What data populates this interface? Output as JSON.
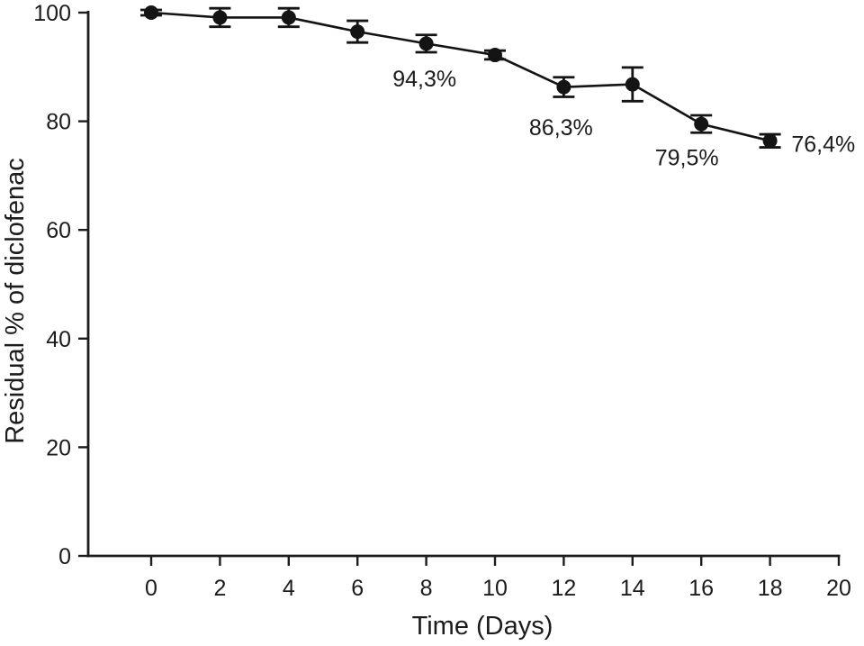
{
  "figure": {
    "background": "#ffffff"
  },
  "chart_data": {
    "type": "line",
    "title": "",
    "xlabel": "Time (Days)",
    "ylabel": "Residual % of diclofenac",
    "x": [
      0,
      2,
      4,
      6,
      8,
      10,
      12,
      14,
      16,
      18
    ],
    "series": [
      {
        "name": "residual-diclofenac",
        "values": [
          100,
          99.1,
          99.1,
          96.5,
          94.3,
          92.2,
          86.3,
          86.8,
          79.5,
          76.4
        ],
        "yerr": [
          0.5,
          1.7,
          1.7,
          2.0,
          1.6,
          0.8,
          1.8,
          3.1,
          1.6,
          1.2
        ]
      }
    ],
    "xticks": [
      0,
      2,
      4,
      6,
      8,
      10,
      12,
      14,
      16,
      18,
      20
    ],
    "yticks": [
      0,
      20,
      40,
      60,
      80,
      100
    ],
    "xlim": [
      0,
      20
    ],
    "ylim": [
      0,
      100
    ],
    "grid": false,
    "legend": false,
    "marker": "filled-circle",
    "colors": {
      "series": "#141414",
      "axis": "#1c1c1c",
      "text": "#1c1c1c"
    },
    "annotations": [
      {
        "text": "94,3%",
        "x": 7.95,
        "y": 87.9
      },
      {
        "text": "86,3%",
        "x": 11.92,
        "y": 78.9
      },
      {
        "text": "79,5%",
        "x": 15.58,
        "y": 73.4
      },
      {
        "text": "76,4%",
        "x": 19.55,
        "y": 75.9
      }
    ]
  }
}
